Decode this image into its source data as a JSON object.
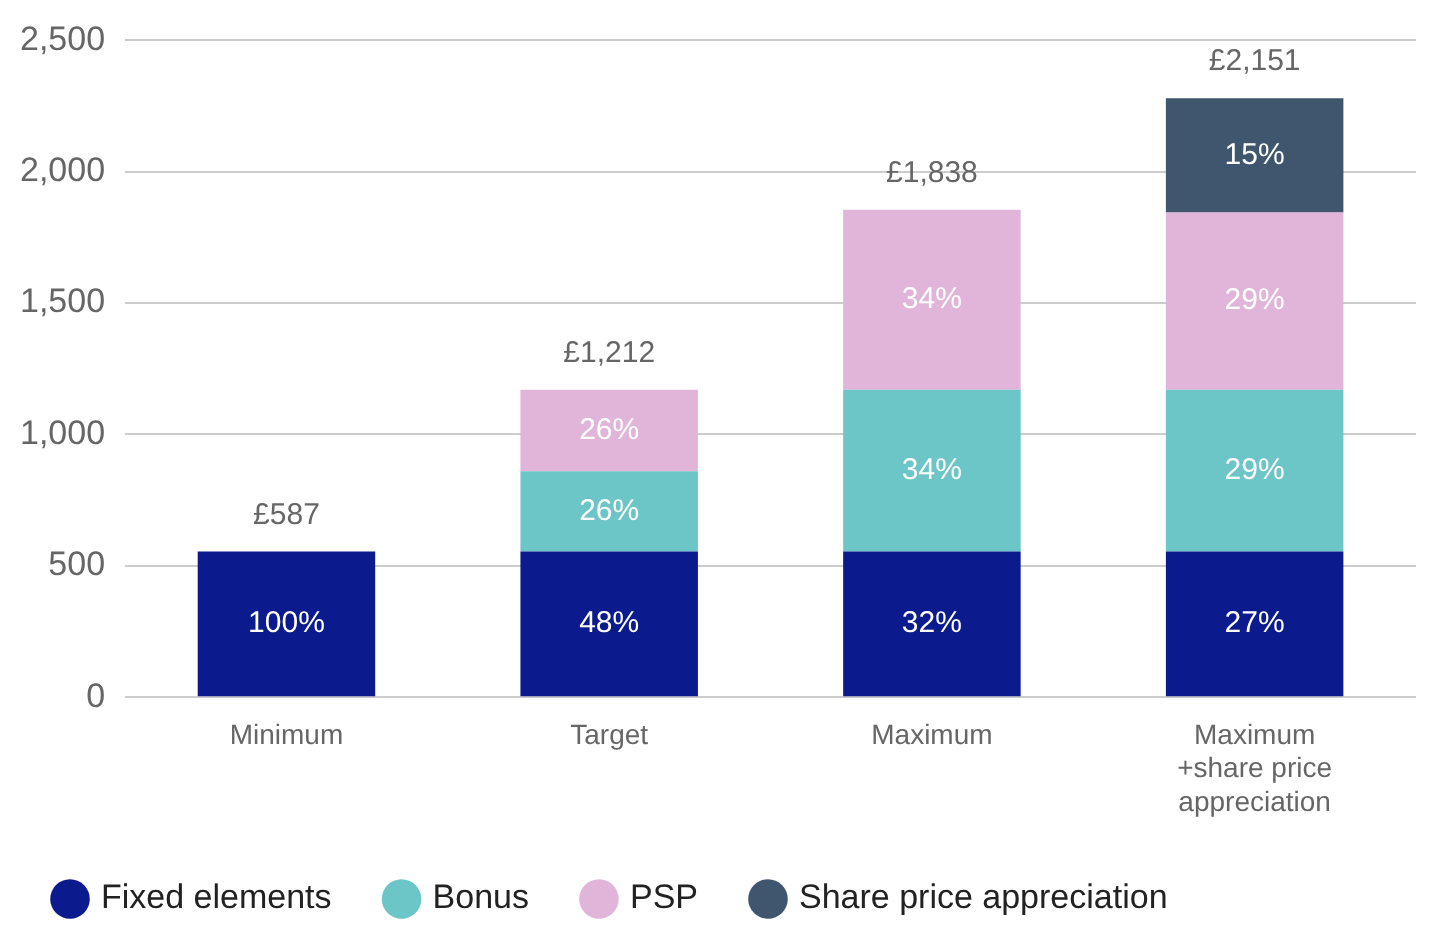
{
  "chart_data": {
    "type": "bar",
    "stacked": true,
    "categories": [
      "Minimum",
      "Target",
      "Maximum",
      "Maximum\n+share price\nappreciation"
    ],
    "series": [
      {
        "name": "Fixed elements",
        "color": "#0b1a8c",
        "values": [
          555,
          555,
          555,
          555
        ]
      },
      {
        "name": "Bonus",
        "color": "#6cc5c6",
        "values": [
          null,
          305,
          615,
          615
        ]
      },
      {
        "name": "PSP",
        "color": "#e1b5da",
        "values": [
          null,
          310,
          685,
          675
        ]
      },
      {
        "name": "Share price appreciation",
        "color": "#3f566e",
        "values": [
          null,
          null,
          null,
          435
        ]
      }
    ],
    "annotations": [
      {
        "text": "£587",
        "x": "Minimum",
        "y": 555
      },
      {
        "text": "£1,212",
        "x": "Target",
        "y": 1170
      },
      {
        "text": "£1,838",
        "x": "Maximum",
        "y": 1855
      },
      {
        "text": "£2,151",
        "x": "Maximum\n+share price\nappreciation",
        "y": 2280
      },
      "100%",
      "48%",
      "26%",
      "26%",
      "32%",
      "34%",
      "34%",
      "27%",
      "29%",
      "29%",
      "15%"
    ],
    "ylim": [
      0,
      2500
    ],
    "yticks": [
      {
        "value": 0,
        "label": "0"
      },
      {
        "value": 500,
        "label": "500"
      },
      {
        "value": 1000,
        "label": "1,000"
      },
      {
        "value": 1500,
        "label": "1,500"
      },
      {
        "value": 2000,
        "label": "2,000"
      },
      {
        "value": 2500,
        "label": "2,500"
      }
    ],
    "grid": "y",
    "legend": "bottom",
    "marker": "circle"
  }
}
